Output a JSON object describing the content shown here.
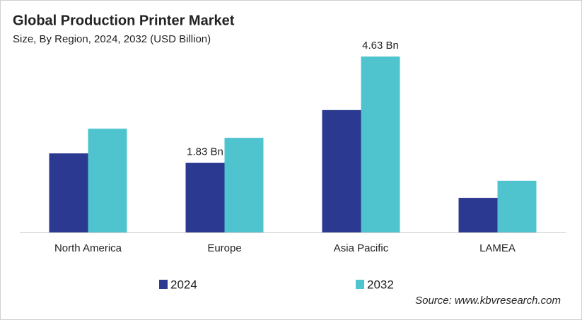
{
  "chart_data": {
    "type": "bar",
    "title": "Global Production Printer Market",
    "subtitle": "Size, By Region, 2024, 2032 (USD Billion)",
    "categories": [
      "North America",
      "Europe",
      "Asia Pacific",
      "LAMEA"
    ],
    "series": [
      {
        "name": "2024",
        "color": "#2b3990",
        "values": [
          2.08,
          1.83,
          3.22,
          0.91
        ],
        "value_labels": [
          null,
          "1.83 Bn",
          null,
          null
        ]
      },
      {
        "name": "2032",
        "color": "#4fc4cf",
        "values": [
          2.73,
          2.49,
          4.63,
          1.36
        ],
        "value_labels": [
          null,
          null,
          "4.63 Bn",
          null
        ]
      }
    ],
    "source": "Source: www.kbvresearch.com"
  }
}
